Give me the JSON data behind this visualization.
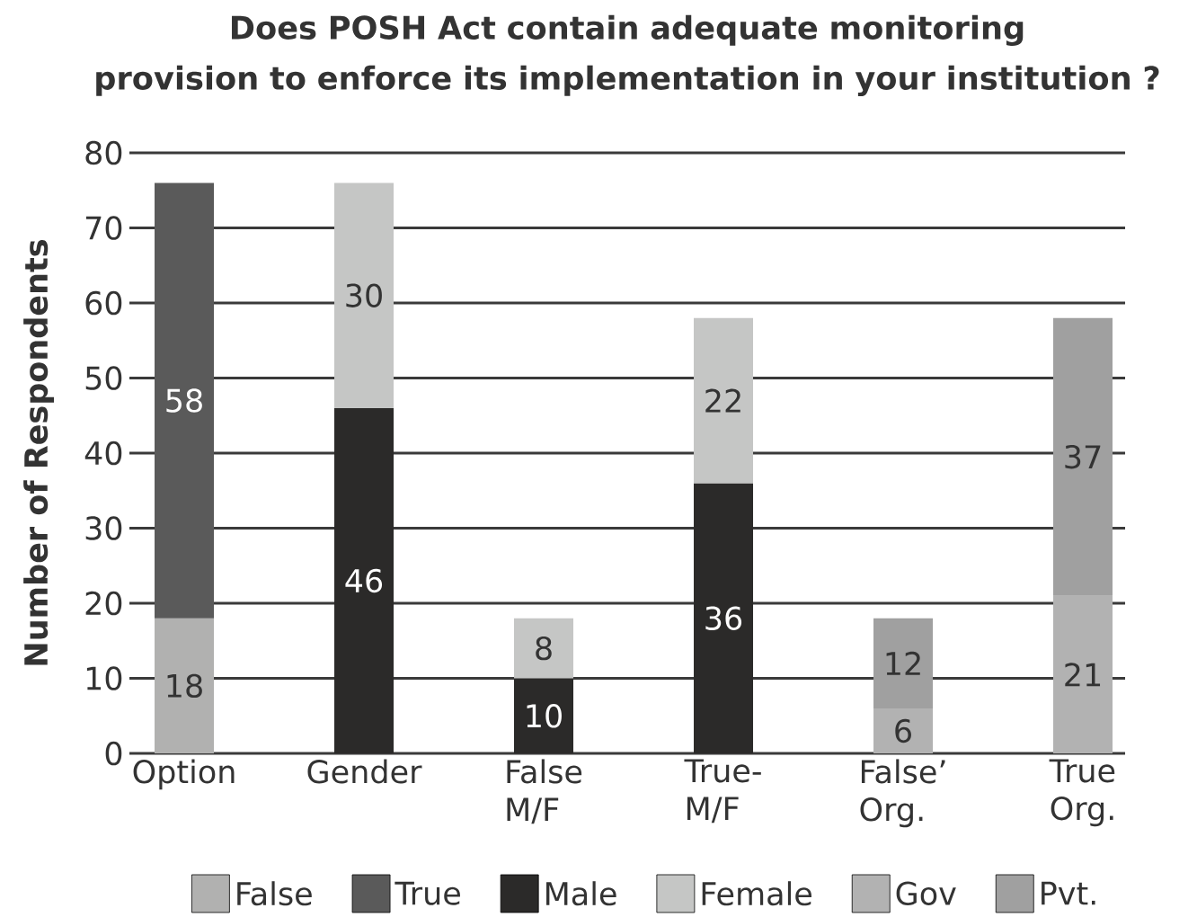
{
  "chart_data": {
    "type": "bar",
    "stacked": true,
    "title": "Does POSH Act contain adequate monitoring\nprovision to enforce its implementation in your institution ?",
    "ylabel": "Number of Respondents",
    "categories": [
      "Option",
      "Gender",
      "False\nM/F",
      "True-\nM/F",
      "False’\nOrg.",
      "True\nOrg."
    ],
    "series": [
      {
        "name": "False",
        "color": "#b1b1b0",
        "values": [
          18,
          null,
          null,
          null,
          null,
          null
        ]
      },
      {
        "name": "True",
        "color": "#5a5a5a",
        "values": [
          58,
          null,
          null,
          null,
          null,
          null
        ]
      },
      {
        "name": "Male",
        "color": "#2b2a29",
        "values": [
          null,
          46,
          10,
          36,
          null,
          null
        ]
      },
      {
        "name": "Female",
        "color": "#c5c6c5",
        "values": [
          null,
          30,
          8,
          22,
          null,
          null
        ]
      },
      {
        "name": "Gov",
        "color": "#b2b2b2",
        "values": [
          null,
          null,
          null,
          null,
          6,
          21
        ]
      },
      {
        "name": "Pvt.",
        "color": "#a0a0a0",
        "values": [
          null,
          null,
          null,
          null,
          12,
          37
        ]
      }
    ],
    "ylim": [
      0,
      80
    ],
    "yticks": [
      0,
      10,
      20,
      30,
      40,
      50,
      60,
      70,
      80
    ],
    "grid": "y",
    "legend": "bottom",
    "data_labels": true
  }
}
